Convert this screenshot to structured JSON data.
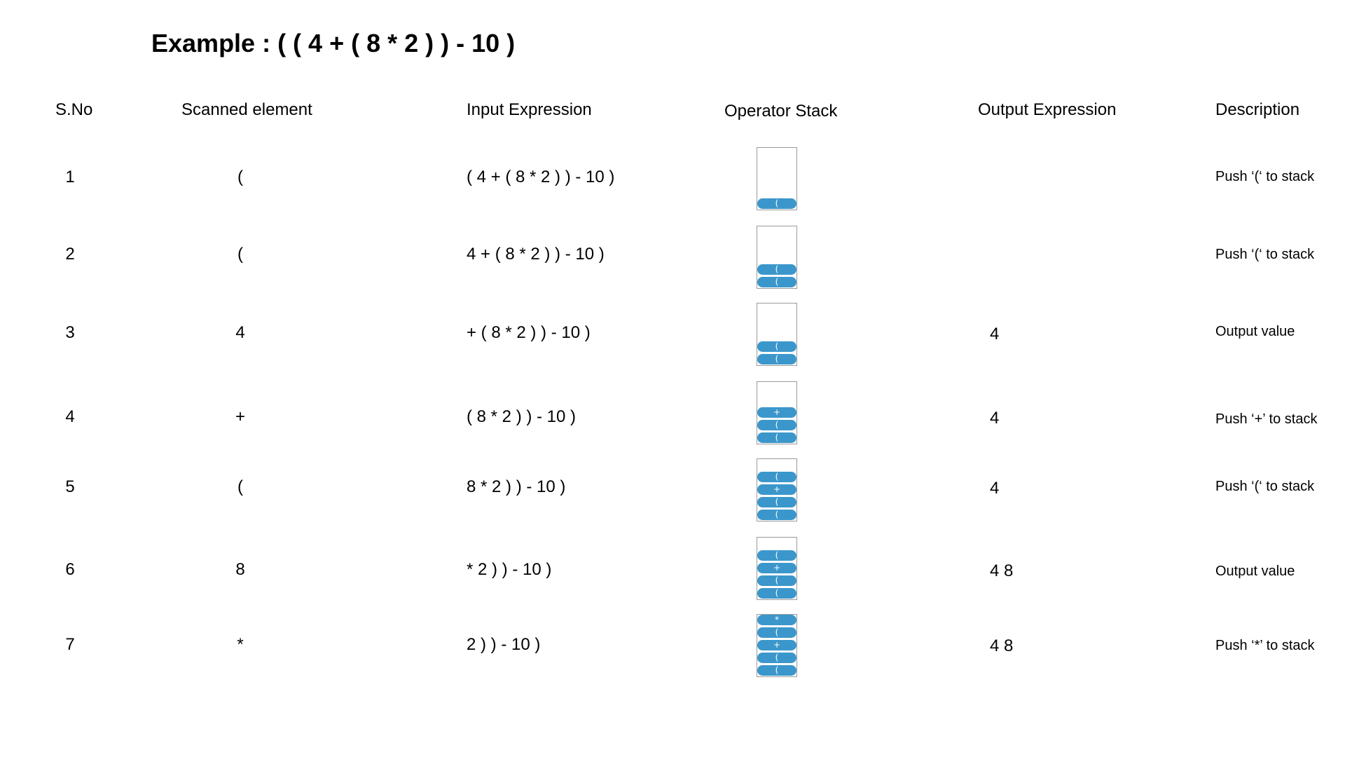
{
  "title": "Example : ( ( 4 + ( 8 * 2 ) ) - 10 )",
  "headers": {
    "sno": "S.No",
    "scanned": "Scanned element",
    "input": "Input Expression",
    "stack": "Operator Stack",
    "output": "Output Expression",
    "description": "Description"
  },
  "rows": [
    {
      "sno": "1",
      "scanned": "(",
      "input": "( 4 + ( 8 * 2 ) ) - 10 )",
      "stack": [
        "("
      ],
      "output": "",
      "description": "Push ‘(‘ to stack"
    },
    {
      "sno": "2",
      "scanned": "(",
      "input": "4 + ( 8 * 2 ) ) - 10 )",
      "stack": [
        "(",
        "("
      ],
      "output": "",
      "description": "Push ‘(‘ to stack"
    },
    {
      "sno": "3",
      "scanned": "4",
      "input": "+ ( 8 * 2 ) ) - 10 )",
      "stack": [
        "(",
        "("
      ],
      "output": "4",
      "description": "Output value"
    },
    {
      "sno": "4",
      "scanned": "+",
      "input": "( 8 * 2 ) ) - 10 )",
      "stack": [
        "+",
        "(",
        "("
      ],
      "output": "4",
      "description": "Push ‘+’ to stack"
    },
    {
      "sno": "5",
      "scanned": "(",
      "input": "8 * 2 ) ) - 10 )",
      "stack": [
        "(",
        "+",
        "(",
        "("
      ],
      "output": "4",
      "description": "Push ‘(‘ to stack"
    },
    {
      "sno": "6",
      "scanned": "8",
      "input": "* 2 ) ) - 10 )",
      "stack": [
        "(",
        "+",
        "(",
        "("
      ],
      "output": "4 8",
      "description": "Output value"
    },
    {
      "sno": "7",
      "scanned": "*",
      "input": "2 ) ) - 10 )",
      "stack": [
        "*",
        "(",
        "+",
        "(",
        "("
      ],
      "output": "4 8",
      "description": "Push ‘*’ to stack"
    }
  ],
  "colors": {
    "stack_item": "#3b97cb",
    "stack_border": "#9a9a9a"
  }
}
